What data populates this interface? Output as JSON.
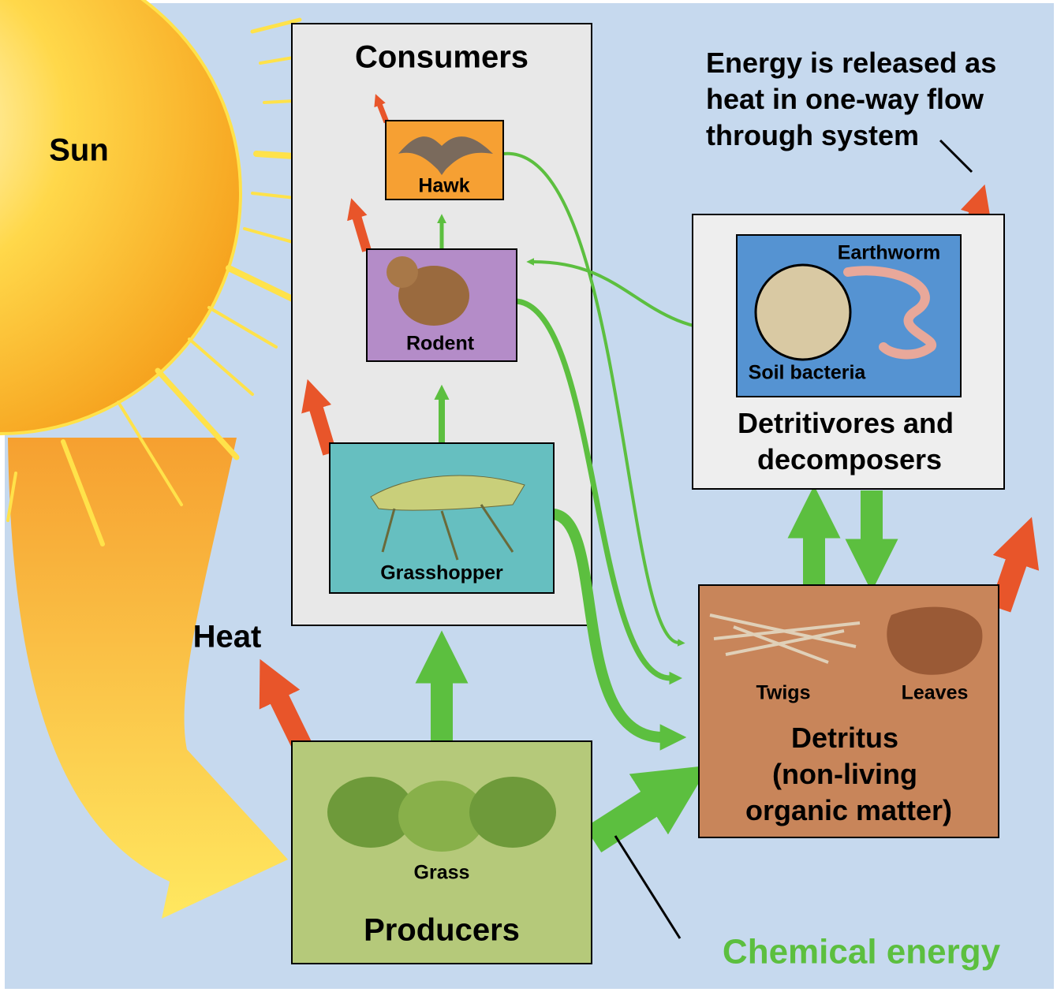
{
  "sun": "Sun",
  "heat": "Heat",
  "consumers": {
    "title": "Consumers",
    "hawk": "Hawk",
    "rodent": "Rodent",
    "grasshopper": "Grasshopper"
  },
  "producers": {
    "title": "Producers",
    "grass": "Grass"
  },
  "decomposers": {
    "title": [
      "Detritivores and",
      "decomposers"
    ],
    "earthworm": "Earthworm",
    "soil_bacteria": "Soil bacteria"
  },
  "detritus": {
    "title": [
      "Detritus",
      "(non-living",
      "organic matter)"
    ],
    "twigs": "Twigs",
    "leaves": "Leaves"
  },
  "heat_note": [
    "Energy is released as",
    "heat in one-way flow",
    "through system"
  ],
  "chemical_energy": "Chemical energy"
}
